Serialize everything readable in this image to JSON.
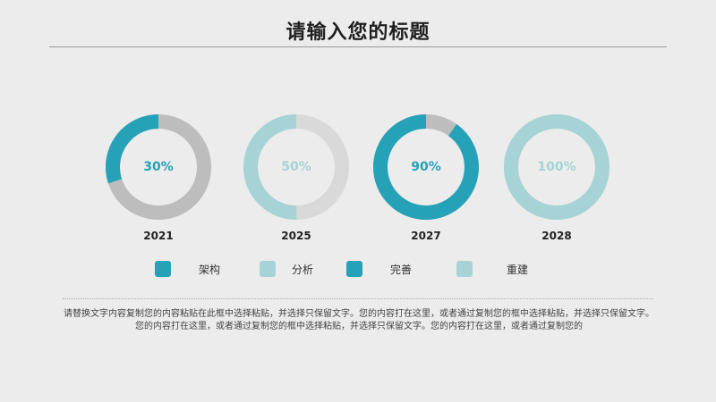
{
  "title": "请输入您的标题",
  "chart_data": {
    "type": "donut",
    "charts": [
      {
        "year": "2021",
        "percent": 30,
        "label": "30%",
        "fill_color": "#26a2b8",
        "rest_color": "#bdbdbd",
        "label_color": "#26a2b8"
      },
      {
        "year": "2025",
        "percent": 50,
        "label": "50%",
        "fill_color": "#a6d3d5",
        "rest_color": "#d9d9d9",
        "label_color": "#a6d3d5"
      },
      {
        "year": "2027",
        "percent": 90,
        "label": "90%",
        "fill_color": "#26a2b8",
        "rest_color": "#bdbdbd",
        "label_color": "#26a2b8"
      },
      {
        "year": "2028",
        "percent": 100,
        "label": "100%",
        "fill_color": "#a6d3d5",
        "rest_color": "#d9d9d9",
        "label_color": "#a6d3d5"
      }
    ],
    "legend": [
      {
        "label": "架构",
        "color": "#26a2b8"
      },
      {
        "label": "分析",
        "color": "#a6d3d5"
      },
      {
        "label": "完善",
        "color": "#26a2b8"
      },
      {
        "label": "重建",
        "color": "#a6d3d5"
      }
    ]
  },
  "description": "请替换文字内容复制您的内容粘贴在此框中选择粘贴，并选择只保留文字。您的内容打在这里，或者通过复制您的框中选择粘贴，并选择只保留文字。您的内容打在这里，或者通过复制您的框中选择粘贴，并选择只保留文字。您的内容打在这里，或者通过复制您的"
}
